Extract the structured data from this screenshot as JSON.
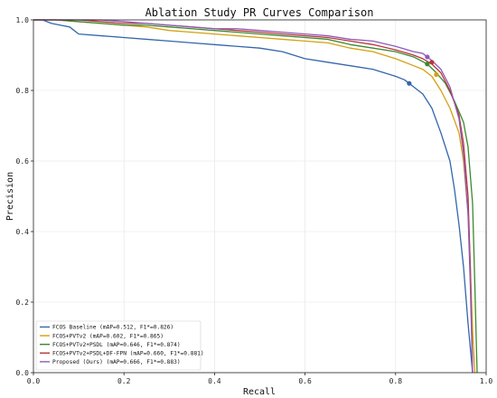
{
  "chart_data": {
    "type": "line",
    "title": "Ablation Study PR Curves Comparison",
    "xlabel": "Recall",
    "ylabel": "Precision",
    "xlim": [
      0.0,
      1.0
    ],
    "ylim": [
      0.0,
      1.0
    ],
    "xticks": [
      "0.0",
      "0.2",
      "0.4",
      "0.6",
      "0.8",
      "1.0"
    ],
    "yticks": [
      "0.0",
      "0.2",
      "0.4",
      "0.6",
      "0.8",
      "1.0"
    ],
    "grid": true,
    "legend_position": "bottom-left",
    "series": [
      {
        "name": "FCOS Baseline (mAP=0.512, F1*=0.826)",
        "color": "#3366aa",
        "x": [
          0.0,
          0.02,
          0.04,
          0.06,
          0.08,
          0.1,
          0.15,
          0.2,
          0.25,
          0.3,
          0.35,
          0.4,
          0.45,
          0.5,
          0.55,
          0.6,
          0.65,
          0.7,
          0.75,
          0.8,
          0.82,
          0.84,
          0.86,
          0.88,
          0.9,
          0.92,
          0.93,
          0.94,
          0.95,
          0.96,
          0.965,
          0.97
        ],
        "y": [
          1.0,
          1.0,
          0.99,
          0.985,
          0.98,
          0.96,
          0.955,
          0.95,
          0.945,
          0.94,
          0.935,
          0.93,
          0.925,
          0.92,
          0.91,
          0.89,
          0.88,
          0.87,
          0.86,
          0.84,
          0.83,
          0.81,
          0.79,
          0.75,
          0.68,
          0.6,
          0.52,
          0.42,
          0.3,
          0.14,
          0.07,
          0.0
        ],
        "best_point": [
          0.83,
          0.82
        ]
      },
      {
        "name": "FCOS+PVTv2 (mAP=0.602, F1*=0.865)",
        "color": "#d4a010",
        "x": [
          0.0,
          0.05,
          0.1,
          0.15,
          0.2,
          0.25,
          0.3,
          0.35,
          0.4,
          0.45,
          0.5,
          0.55,
          0.6,
          0.65,
          0.7,
          0.75,
          0.8,
          0.84,
          0.86,
          0.88,
          0.9,
          0.92,
          0.94,
          0.95,
          0.96,
          0.965,
          0.97,
          0.975
        ],
        "y": [
          1.0,
          1.0,
          0.995,
          0.99,
          0.985,
          0.98,
          0.97,
          0.965,
          0.96,
          0.955,
          0.95,
          0.945,
          0.94,
          0.935,
          0.92,
          0.91,
          0.89,
          0.87,
          0.86,
          0.84,
          0.8,
          0.75,
          0.68,
          0.6,
          0.45,
          0.3,
          0.12,
          0.0
        ],
        "best_point": [
          0.89,
          0.845
        ]
      },
      {
        "name": "FCOS+PVTv2+PSDL (mAP=0.646, F1*=0.874)",
        "color": "#3b8a2e",
        "x": [
          0.0,
          0.05,
          0.1,
          0.15,
          0.2,
          0.25,
          0.3,
          0.35,
          0.4,
          0.45,
          0.5,
          0.55,
          0.6,
          0.65,
          0.7,
          0.75,
          0.8,
          0.84,
          0.87,
          0.89,
          0.91,
          0.93,
          0.95,
          0.96,
          0.97,
          0.975,
          0.98
        ],
        "y": [
          1.0,
          1.0,
          0.995,
          0.99,
          0.985,
          0.985,
          0.98,
          0.975,
          0.97,
          0.965,
          0.96,
          0.955,
          0.95,
          0.945,
          0.93,
          0.92,
          0.91,
          0.895,
          0.875,
          0.85,
          0.82,
          0.77,
          0.71,
          0.64,
          0.48,
          0.25,
          0.0
        ],
        "best_point": [
          0.87,
          0.875
        ]
      },
      {
        "name": "FCOS+PVTv2+PSDL+DF-FPN (mAP=0.660, F1*=0.881)",
        "color": "#b8353a",
        "x": [
          0.0,
          0.05,
          0.1,
          0.15,
          0.2,
          0.25,
          0.3,
          0.35,
          0.4,
          0.45,
          0.5,
          0.55,
          0.6,
          0.65,
          0.7,
          0.75,
          0.8,
          0.84,
          0.86,
          0.88,
          0.9,
          0.92,
          0.94,
          0.95,
          0.96,
          0.965,
          0.97
        ],
        "y": [
          1.0,
          1.0,
          1.0,
          0.995,
          0.99,
          0.99,
          0.985,
          0.98,
          0.975,
          0.97,
          0.965,
          0.96,
          0.955,
          0.95,
          0.94,
          0.93,
          0.915,
          0.9,
          0.89,
          0.875,
          0.85,
          0.8,
          0.73,
          0.65,
          0.5,
          0.3,
          0.0
        ],
        "best_point": [
          0.88,
          0.88
        ]
      },
      {
        "name": "Proposed (Ours) (mAP=0.666, F1*=0.883)",
        "color": "#8e5ab8",
        "x": [
          0.0,
          0.05,
          0.1,
          0.15,
          0.2,
          0.25,
          0.3,
          0.35,
          0.4,
          0.45,
          0.5,
          0.55,
          0.6,
          0.65,
          0.7,
          0.75,
          0.8,
          0.84,
          0.86,
          0.88,
          0.9,
          0.92,
          0.94,
          0.95,
          0.96,
          0.965,
          0.97
        ],
        "y": [
          1.0,
          1.0,
          1.0,
          1.0,
          0.995,
          0.99,
          0.985,
          0.98,
          0.975,
          0.975,
          0.97,
          0.965,
          0.96,
          0.955,
          0.945,
          0.94,
          0.925,
          0.91,
          0.905,
          0.885,
          0.86,
          0.81,
          0.72,
          0.62,
          0.45,
          0.25,
          0.0
        ],
        "best_point": [
          0.87,
          0.895
        ]
      }
    ]
  }
}
